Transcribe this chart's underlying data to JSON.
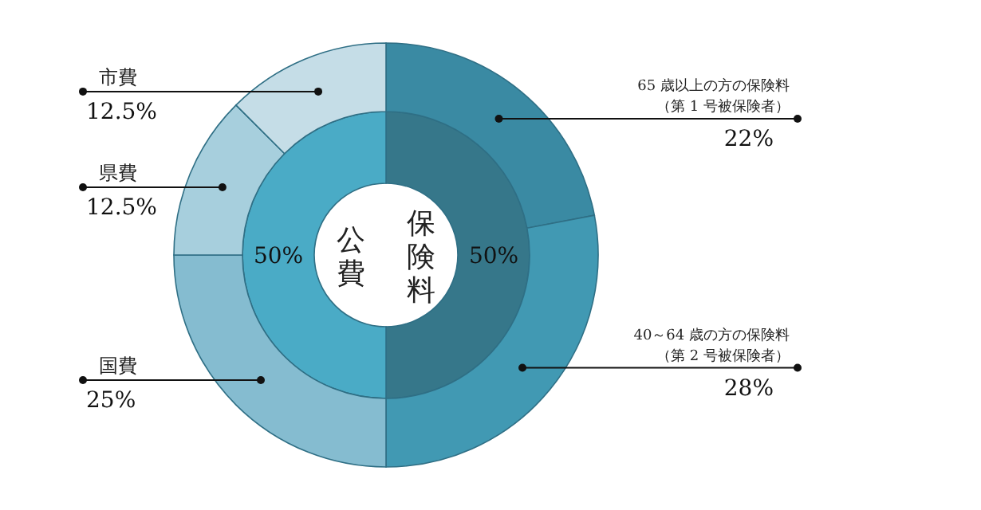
{
  "chart_data": [
    {
      "type": "donut",
      "categories": [
        "保険料",
        "公費"
      ],
      "values": [
        50,
        50
      ],
      "colors": [
        "#36778a",
        "#4aabc6"
      ],
      "value_labels": [
        "50%",
        "50%"
      ]
    },
    {
      "type": "donut",
      "categories": [
        "65 歳以上の方の保険料（第 1 号被保険者）",
        "40～64 歳の方の保険料（第 2 号被保険者）",
        "国費",
        "県費",
        "市費"
      ],
      "values": [
        22,
        28,
        25,
        12.5,
        12.5
      ],
      "colors": [
        "#3a8aa3",
        "#4199b3",
        "#85bcd0",
        "#a7cfdd",
        "#c5dde7"
      ],
      "value_labels": [
        "22%",
        "28%",
        "25%",
        "12.5%",
        "12.5%"
      ]
    }
  ]
}
